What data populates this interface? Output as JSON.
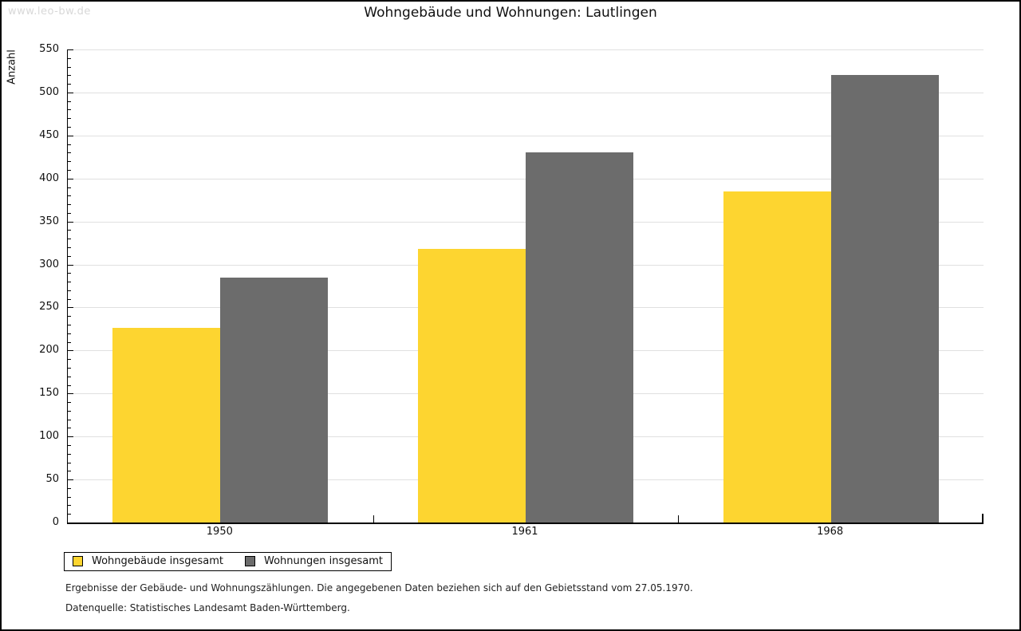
{
  "watermark": "www.leo-bw.de",
  "title": "Wohngebäude und Wohnungen: Lautlingen",
  "chart_data": {
    "type": "bar",
    "title": "Wohngebäude und Wohnungen: Lautlingen",
    "categories": [
      "1950",
      "1961",
      "1968"
    ],
    "series": [
      {
        "name": "Wohngebäude insgesamt",
        "color": "#FDD530",
        "values": [
          226,
          318,
          385
        ]
      },
      {
        "name": "Wohnungen insgesamt",
        "color": "#6C6C6C",
        "values": [
          285,
          430,
          520
        ]
      }
    ],
    "xlabel": "",
    "ylabel": "Anzahl",
    "ylim": [
      0,
      550
    ],
    "ytick_step": 50,
    "ytick_minor_step": 10,
    "grid": true,
    "gridline_color": "#E0E0E0",
    "legend_position": "bottom-left"
  },
  "footer": {
    "line1": "Ergebnisse der Gebäude- und Wohnungszählungen. Die angegebenen Daten beziehen sich auf den Gebietsstand vom 27.05.1970.",
    "line2": "Datenquelle: Statistisches Landesamt Baden-Württemberg."
  }
}
